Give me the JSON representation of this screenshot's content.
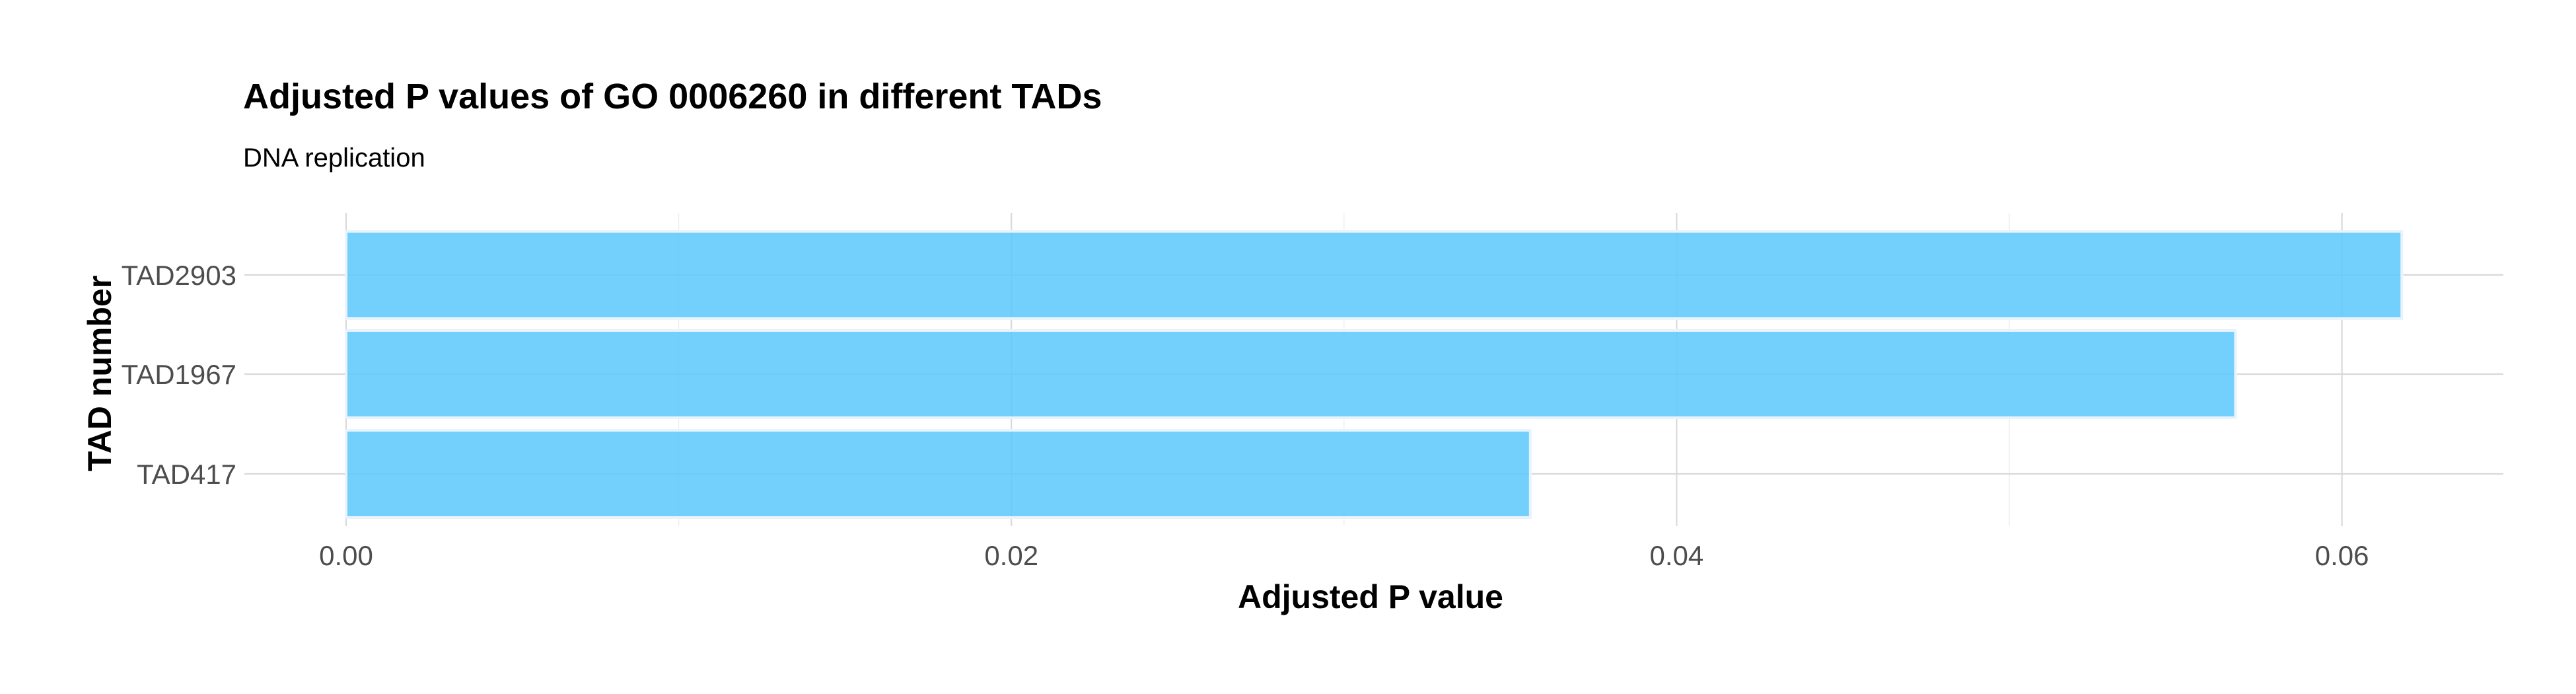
{
  "chart_data": {
    "type": "bar",
    "orientation": "horizontal",
    "title": "Adjusted P values of GO 0006260 in different TADs",
    "subtitle": "DNA replication",
    "xlabel": "Adjusted P value",
    "ylabel": "TAD number",
    "categories": [
      "TAD417",
      "TAD1967",
      "TAD2903"
    ],
    "values": [
      0.0356,
      0.0568,
      0.0618
    ],
    "xlim": [
      0,
      0.065
    ],
    "xticks": [
      0.0,
      0.02,
      0.04,
      0.06
    ],
    "xtick_labels": [
      "0.00",
      "0.02",
      "0.04",
      "0.06"
    ],
    "grid": true,
    "legend": "none",
    "bar_color": "#5bc8fb"
  }
}
